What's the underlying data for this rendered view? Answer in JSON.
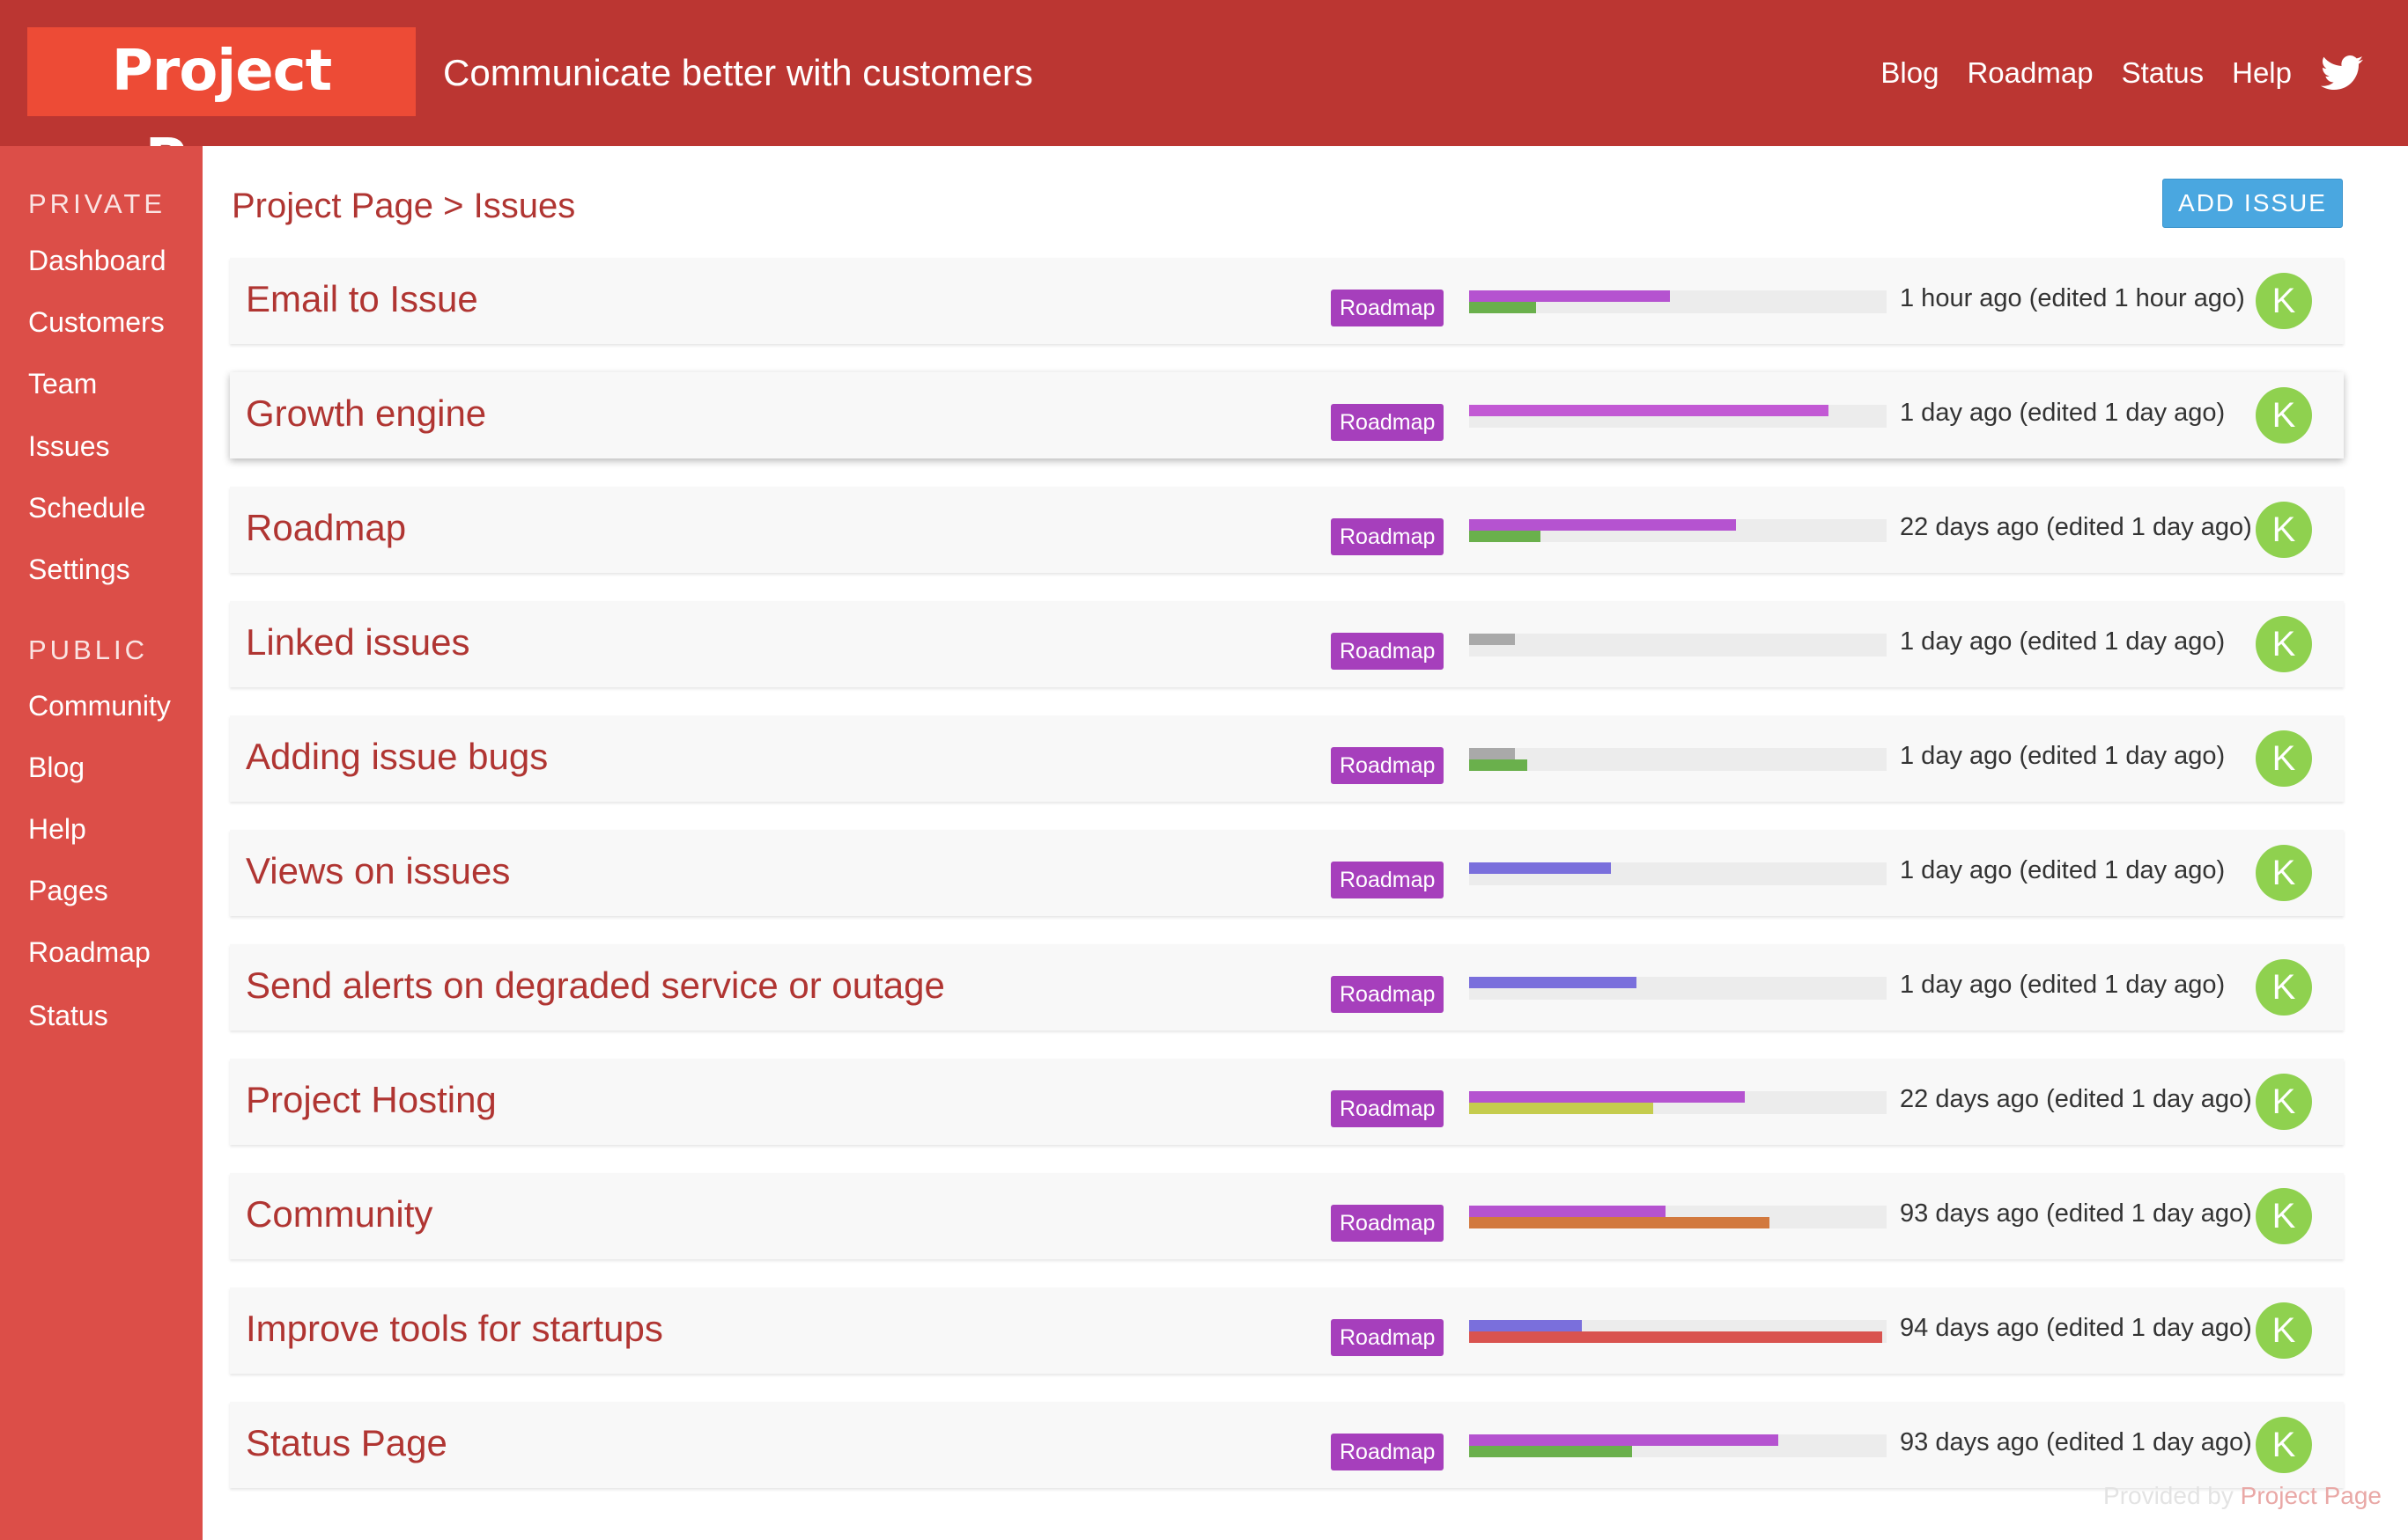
{
  "header": {
    "logo": "Project Page",
    "tagline": "Communicate better with customers",
    "nav": [
      "Blog",
      "Roadmap",
      "Status",
      "Help"
    ],
    "social_icon": "twitter-icon"
  },
  "sidebar": {
    "private_title": "PRIVATE",
    "private_items": [
      "Dashboard",
      "Customers",
      "Team",
      "Issues",
      "Schedule",
      "Settings"
    ],
    "public_title": "PUBLIC",
    "public_items": [
      "Community",
      "Blog",
      "Help",
      "Pages",
      "Roadmap",
      "Status"
    ]
  },
  "main": {
    "breadcrumb": "Project Page > Issues",
    "add_button": "ADD ISSUE"
  },
  "issues": [
    {
      "title": "Email to Issue",
      "tag": "Roadmap",
      "time": "1 hour ago (edited 1 hour ago)",
      "avatar": "K",
      "bars": [
        {
          "pct": 48,
          "color": "#b553d0",
          "row": "top"
        },
        {
          "pct": 16,
          "color": "#6ab04c",
          "row": "bottom"
        }
      ]
    },
    {
      "title": "Growth engine",
      "tag": "Roadmap",
      "time": "1 day ago (edited 1 day ago)",
      "avatar": "K",
      "highlighted": true,
      "bars": [
        {
          "pct": 86,
          "color": "#c259d4",
          "row": "top"
        }
      ]
    },
    {
      "title": "Roadmap",
      "tag": "Roadmap",
      "time": "22 days ago (edited 1 day ago)",
      "avatar": "K",
      "bars": [
        {
          "pct": 64,
          "color": "#b553d0",
          "row": "top"
        },
        {
          "pct": 17,
          "color": "#6ab04c",
          "row": "bottom"
        }
      ]
    },
    {
      "title": "Linked issues",
      "tag": "Roadmap",
      "time": "1 day ago (edited 1 day ago)",
      "avatar": "K",
      "bars": [
        {
          "pct": 11,
          "color": "#a9a9a9",
          "row": "top"
        }
      ]
    },
    {
      "title": "Adding issue bugs",
      "tag": "Roadmap",
      "time": "1 day ago (edited 1 day ago)",
      "avatar": "K",
      "bars": [
        {
          "pct": 11,
          "color": "#a9a9a9",
          "row": "top"
        },
        {
          "pct": 14,
          "color": "#6ab04c",
          "row": "bottom"
        }
      ]
    },
    {
      "title": "Views on issues",
      "tag": "Roadmap",
      "time": "1 day ago (edited 1 day ago)",
      "avatar": "K",
      "bars": [
        {
          "pct": 34,
          "color": "#7a6fdc",
          "row": "top"
        }
      ]
    },
    {
      "title": "Send alerts on degraded service or outage",
      "tag": "Roadmap",
      "time": "1 day ago (edited 1 day ago)",
      "avatar": "K",
      "bars": [
        {
          "pct": 40,
          "color": "#7a6fdc",
          "row": "top"
        }
      ]
    },
    {
      "title": "Project Hosting",
      "tag": "Roadmap",
      "time": "22 days ago (edited 1 day ago)",
      "avatar": "K",
      "bars": [
        {
          "pct": 66,
          "color": "#b553d0",
          "row": "top"
        },
        {
          "pct": 44,
          "color": "#c5cc4e",
          "row": "bottom"
        }
      ]
    },
    {
      "title": "Community",
      "tag": "Roadmap",
      "time": "93 days ago (edited 1 day ago)",
      "avatar": "K",
      "bars": [
        {
          "pct": 47,
          "color": "#b553d0",
          "row": "top"
        },
        {
          "pct": 72,
          "color": "#d2793e",
          "row": "bottom"
        }
      ]
    },
    {
      "title": "Improve tools for startups",
      "tag": "Roadmap",
      "time": "94 days ago (edited 1 day ago)",
      "avatar": "K",
      "bars": [
        {
          "pct": 27,
          "color": "#7a6fdc",
          "row": "top"
        },
        {
          "pct": 99,
          "color": "#d9534f",
          "row": "bottom"
        }
      ]
    },
    {
      "title": "Status Page",
      "tag": "Roadmap",
      "time": "93 days ago (edited 1 day ago)",
      "avatar": "K",
      "bars": [
        {
          "pct": 74,
          "color": "#b553d0",
          "row": "top"
        },
        {
          "pct": 39,
          "color": "#6ab04c",
          "row": "bottom"
        }
      ]
    }
  ],
  "footer": {
    "prefix": "Provided by",
    "brand": "Project Page"
  }
}
